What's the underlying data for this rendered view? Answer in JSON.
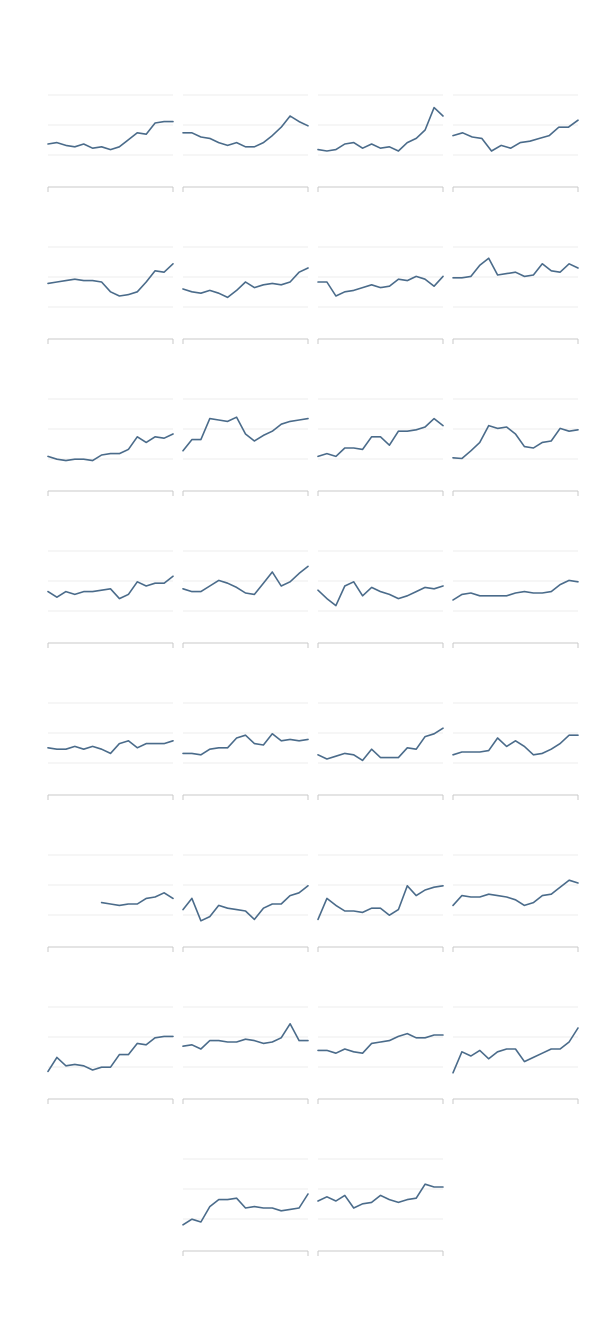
{
  "chart_data": {
    "type": "line",
    "layout": "small-multiples",
    "grid": true,
    "legend": "none",
    "line_color": "#4a6b8a",
    "ylim": [
      0,
      10
    ],
    "panels": [
      {
        "values": [
          3.0,
          3.2,
          2.8,
          2.6,
          3.0,
          2.4,
          2.6,
          2.2,
          2.6,
          3.6,
          4.6,
          4.4,
          6.0,
          6.2,
          6.2
        ]
      },
      {
        "values": [
          4.6,
          4.6,
          4.0,
          3.8,
          3.2,
          2.8,
          3.2,
          2.6,
          2.6,
          3.2,
          4.2,
          5.4,
          7.0,
          6.2,
          5.6
        ]
      },
      {
        "values": [
          2.2,
          2.0,
          2.2,
          3.0,
          3.2,
          2.4,
          3.0,
          2.4,
          2.6,
          2.0,
          3.2,
          3.8,
          5.0,
          8.2,
          7.0
        ]
      },
      {
        "values": [
          4.2,
          4.6,
          4.0,
          3.8,
          2.0,
          2.8,
          2.4,
          3.2,
          3.4,
          3.8,
          4.2,
          5.4,
          5.4,
          6.4
        ]
      },
      {
        "values": [
          4.8,
          5.0,
          5.2,
          5.4,
          5.2,
          5.2,
          5.0,
          3.6,
          3.0,
          3.2,
          3.6,
          5.0,
          6.6,
          6.4,
          7.6
        ]
      },
      {
        "values": [
          4.0,
          3.6,
          3.4,
          3.8,
          3.4,
          2.8,
          3.8,
          5.0,
          4.2,
          4.6,
          4.8,
          4.6,
          5.0,
          6.4,
          7.0
        ]
      },
      {
        "values": [
          5.0,
          5.0,
          3.0,
          3.6,
          3.8,
          4.2,
          4.6,
          4.2,
          4.4,
          5.4,
          5.2,
          5.8,
          5.4,
          4.4,
          5.8
        ]
      },
      {
        "values": [
          5.6,
          5.6,
          5.8,
          7.4,
          8.4,
          6.0,
          6.2,
          6.4,
          5.8,
          6.0,
          7.6,
          6.6,
          6.4,
          7.6,
          7.0
        ]
      },
      {
        "values": [
          1.8,
          1.4,
          1.2,
          1.4,
          1.4,
          1.2,
          2.0,
          2.2,
          2.2,
          2.8,
          4.6,
          3.8,
          4.6,
          4.4,
          5.0
        ]
      },
      {
        "values": [
          2.6,
          4.2,
          4.2,
          7.2,
          7.0,
          6.8,
          7.4,
          5.0,
          4.0,
          4.8,
          5.4,
          6.4,
          6.8,
          7.0,
          7.2
        ]
      },
      {
        "values": [
          1.8,
          2.2,
          1.8,
          3.0,
          3.0,
          2.8,
          4.6,
          4.6,
          3.4,
          5.4,
          5.4,
          5.6,
          6.0,
          7.2,
          6.2
        ]
      },
      {
        "values": [
          1.6,
          1.5,
          2.6,
          3.8,
          6.2,
          5.8,
          6.0,
          5.0,
          3.2,
          3.0,
          3.8,
          4.0,
          5.8,
          5.4,
          5.6
        ]
      },
      {
        "values": [
          4.2,
          3.4,
          4.2,
          3.8,
          4.2,
          4.2,
          4.4,
          4.6,
          3.2,
          3.8,
          5.6,
          5.0,
          5.4,
          5.4,
          6.4
        ]
      },
      {
        "values": [
          4.6,
          4.2,
          4.2,
          5.0,
          5.8,
          5.4,
          4.8,
          4.0,
          3.8,
          5.4,
          7.0,
          5.0,
          5.6,
          6.8,
          7.8
        ]
      },
      {
        "values": [
          4.4,
          3.2,
          2.2,
          5.0,
          5.6,
          3.6,
          4.8,
          4.2,
          3.8,
          3.2,
          3.6,
          4.2,
          4.8,
          4.6,
          5.0
        ]
      },
      {
        "values": [
          3.0,
          3.8,
          4.0,
          3.6,
          3.6,
          3.6,
          3.6,
          4.0,
          4.2,
          4.0,
          4.0,
          4.2,
          5.2,
          5.8,
          5.6
        ]
      },
      {
        "values": [
          3.6,
          3.4,
          3.4,
          3.8,
          3.4,
          3.8,
          3.4,
          2.8,
          4.2,
          4.6,
          3.6,
          4.2,
          4.2,
          4.2,
          4.6
        ]
      },
      {
        "values": [
          2.8,
          2.8,
          2.6,
          3.4,
          3.6,
          3.6,
          5.0,
          5.4,
          4.2,
          4.0,
          5.6,
          4.6,
          4.8,
          4.6,
          4.8
        ]
      },
      {
        "values": [
          2.6,
          2.0,
          2.4,
          2.8,
          2.6,
          1.8,
          3.4,
          2.2,
          2.2,
          2.2,
          3.6,
          3.4,
          5.2,
          5.6,
          6.4
        ]
      },
      {
        "values": [
          2.6,
          3.0,
          3.0,
          3.0,
          3.2,
          5.0,
          3.8,
          4.6,
          3.8,
          2.6,
          2.8,
          3.4,
          4.2,
          5.4,
          5.4
        ]
      },
      {
        "values": [
          null,
          null,
          null,
          null,
          null,
          null,
          3.2,
          3.0,
          2.8,
          3.0,
          3.0,
          3.8,
          4.0,
          4.6,
          3.8
        ]
      },
      {
        "values": [
          2.2,
          3.8,
          0.6,
          1.2,
          2.8,
          2.4,
          2.2,
          2.0,
          0.8,
          2.4,
          3.0,
          3.0,
          4.2,
          4.6,
          5.6
        ]
      },
      {
        "values": [
          0.8,
          3.8,
          2.8,
          2.0,
          2.0,
          1.8,
          2.4,
          2.4,
          1.4,
          2.2,
          5.6,
          4.2,
          5.0,
          5.4,
          5.6
        ]
      },
      {
        "values": [
          2.8,
          4.2,
          4.0,
          4.0,
          4.4,
          4.2,
          4.0,
          3.6,
          2.8,
          3.2,
          4.2,
          4.4,
          5.4,
          6.4,
          6.0
        ]
      },
      {
        "values": [
          0.8,
          2.8,
          1.6,
          1.8,
          1.6,
          1.0,
          1.4,
          1.4,
          3.2,
          3.2,
          4.8,
          4.6,
          5.6,
          5.8,
          5.8
        ]
      },
      {
        "values": [
          4.4,
          4.6,
          4.0,
          5.2,
          5.2,
          5.0,
          5.0,
          5.4,
          5.2,
          4.8,
          5.0,
          5.6,
          7.6,
          5.2,
          5.2
        ]
      },
      {
        "values": [
          3.8,
          3.8,
          3.4,
          4.0,
          3.6,
          3.4,
          4.8,
          5.0,
          5.2,
          5.8,
          6.2,
          5.6,
          5.6,
          6.0,
          6.0
        ]
      },
      {
        "values": [
          0.6,
          3.6,
          3.0,
          3.8,
          2.6,
          3.6,
          4.0,
          4.0,
          2.2,
          2.8,
          3.4,
          4.0,
          4.0,
          5.0,
          7.0
        ]
      },
      {
        "values": [
          0.6,
          1.4,
          1.0,
          3.2,
          4.2,
          4.2,
          4.4,
          3.0,
          3.2,
          3.0,
          3.0,
          2.6,
          2.8,
          3.0,
          5.0
        ]
      },
      {
        "values": [
          4.0,
          4.6,
          4.0,
          4.8,
          3.0,
          3.6,
          3.8,
          4.8,
          4.2,
          3.8,
          4.2,
          4.4,
          6.4,
          6.0,
          6.0
        ]
      }
    ]
  }
}
